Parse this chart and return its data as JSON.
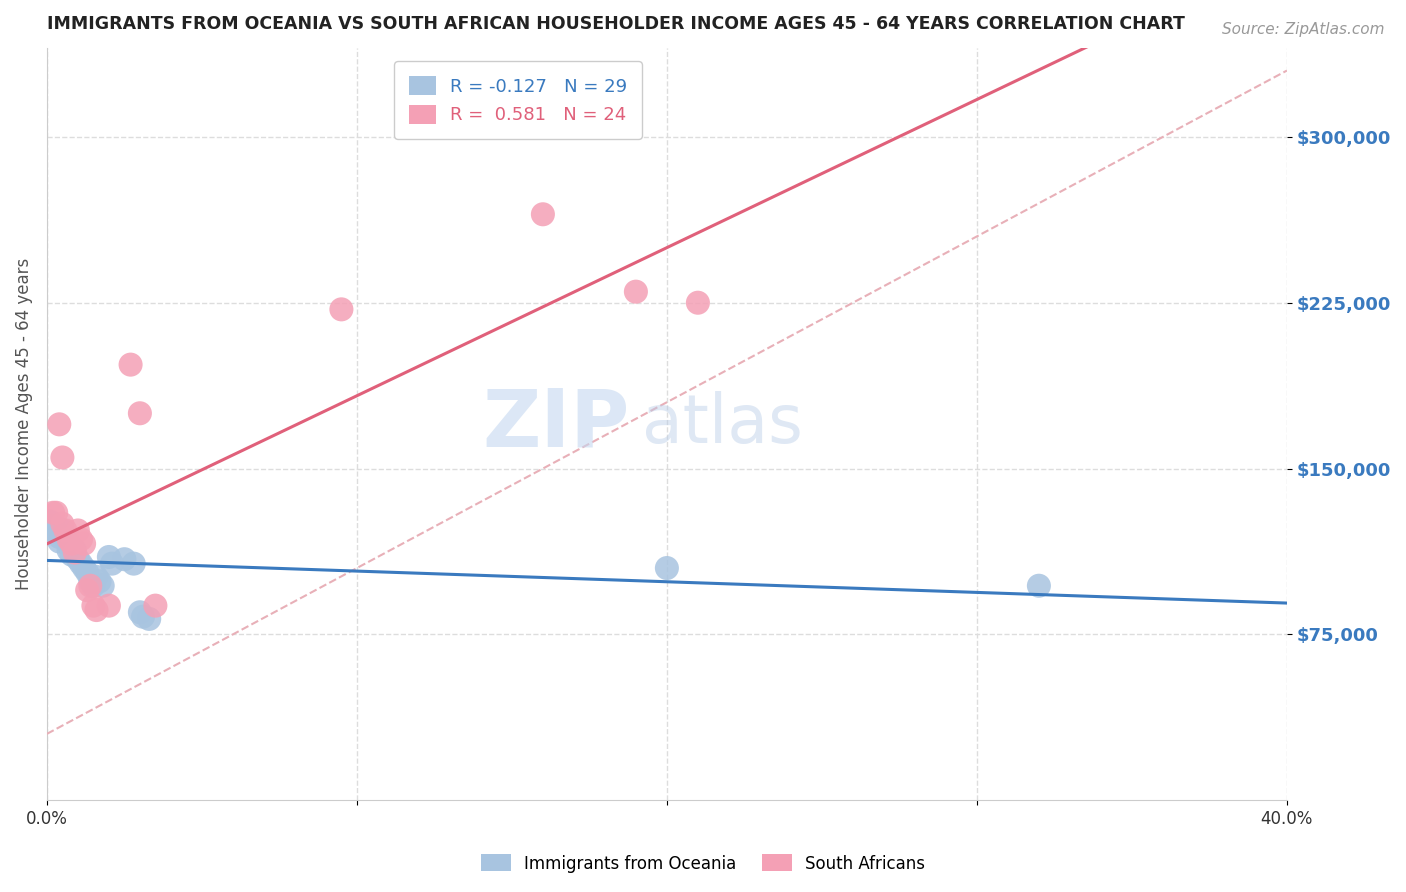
{
  "title": "IMMIGRANTS FROM OCEANIA VS SOUTH AFRICAN HOUSEHOLDER INCOME AGES 45 - 64 YEARS CORRELATION CHART",
  "source": "Source: ZipAtlas.com",
  "ylabel": "Householder Income Ages 45 - 64 years",
  "legend_label1": "Immigrants from Oceania",
  "legend_label2": "South Africans",
  "r1": -0.127,
  "n1": 29,
  "r2": 0.581,
  "n2": 24,
  "color1": "#a8c4e0",
  "color2": "#f4a0b5",
  "line_color1": "#3a7abf",
  "line_color2": "#e0607a",
  "ref_line_color": "#e8b0b8",
  "xmin": 0.0,
  "xmax": 0.4,
  "ymin": 0,
  "ymax": 340000,
  "yticks": [
    75000,
    150000,
    225000,
    300000
  ],
  "ytick_labels": [
    "$75,000",
    "$150,000",
    "$225,000",
    "$300,000"
  ],
  "xticks": [
    0.0,
    0.1,
    0.2,
    0.3,
    0.4
  ],
  "xtick_labels": [
    "0.0%",
    "",
    "",
    "",
    "40.0%"
  ],
  "watermark_zip": "ZIP",
  "watermark_atlas": "atlas",
  "blue_points": [
    [
      0.001,
      126000
    ],
    [
      0.002,
      124000
    ],
    [
      0.003,
      121000
    ],
    [
      0.004,
      119000
    ],
    [
      0.004,
      117000
    ],
    [
      0.005,
      122000
    ],
    [
      0.006,
      118000
    ],
    [
      0.007,
      116000
    ],
    [
      0.007,
      113000
    ],
    [
      0.008,
      111000
    ],
    [
      0.009,
      113000
    ],
    [
      0.01,
      109000
    ],
    [
      0.011,
      107000
    ],
    [
      0.012,
      105000
    ],
    [
      0.013,
      103000
    ],
    [
      0.014,
      99000
    ],
    [
      0.015,
      97000
    ],
    [
      0.016,
      101000
    ],
    [
      0.017,
      99000
    ],
    [
      0.018,
      97000
    ],
    [
      0.02,
      110000
    ],
    [
      0.021,
      107000
    ],
    [
      0.025,
      109000
    ],
    [
      0.028,
      107000
    ],
    [
      0.03,
      85000
    ],
    [
      0.031,
      83000
    ],
    [
      0.033,
      82000
    ],
    [
      0.2,
      105000
    ],
    [
      0.32,
      97000
    ]
  ],
  "pink_points": [
    [
      0.002,
      130000
    ],
    [
      0.003,
      130000
    ],
    [
      0.004,
      170000
    ],
    [
      0.005,
      155000
    ],
    [
      0.005,
      125000
    ],
    [
      0.006,
      122000
    ],
    [
      0.007,
      118000
    ],
    [
      0.008,
      116000
    ],
    [
      0.009,
      112000
    ],
    [
      0.01,
      122000
    ],
    [
      0.011,
      118000
    ],
    [
      0.012,
      116000
    ],
    [
      0.013,
      95000
    ],
    [
      0.014,
      97000
    ],
    [
      0.015,
      88000
    ],
    [
      0.016,
      86000
    ],
    [
      0.02,
      88000
    ],
    [
      0.027,
      197000
    ],
    [
      0.03,
      175000
    ],
    [
      0.035,
      88000
    ],
    [
      0.095,
      222000
    ],
    [
      0.16,
      265000
    ],
    [
      0.19,
      230000
    ],
    [
      0.21,
      225000
    ]
  ]
}
